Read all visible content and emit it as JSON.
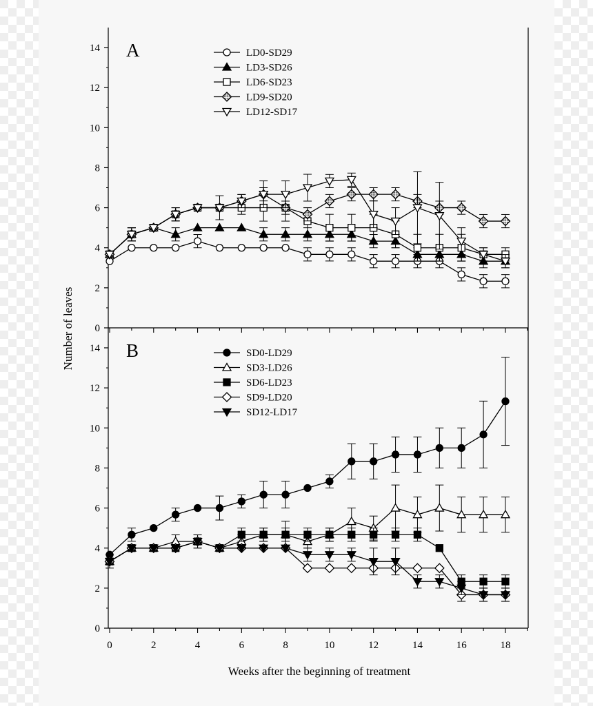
{
  "figure": {
    "ylabel": "Number of leaves",
    "xlabel": "Weeks after the beginning of treatment"
  },
  "chart_data": [
    {
      "type": "line",
      "panel_label": "A",
      "xlabel": "Weeks after the beginning of treatment",
      "ylabel": "Number of leaves",
      "xlim": [
        0,
        18
      ],
      "ylim": [
        0,
        14
      ],
      "x_ticks": [
        "0",
        "2",
        "4",
        "6",
        "8",
        "10",
        "12",
        "14",
        "16",
        "18"
      ],
      "y_ticks": [
        "0",
        "2",
        "4",
        "6",
        "8",
        "10",
        "12",
        "14"
      ],
      "legend_position": "top-center",
      "series": [
        {
          "name": "LD0-SD29",
          "marker": "circle-open",
          "x": [
            0,
            1,
            2,
            3,
            4,
            5,
            6,
            7,
            8,
            9,
            10,
            11,
            12,
            13,
            14,
            15,
            16,
            17,
            18
          ],
          "y": [
            3.33,
            4.0,
            4.0,
            4.0,
            4.33,
            4.0,
            4.0,
            4.0,
            4.0,
            3.67,
            3.67,
            3.67,
            3.33,
            3.33,
            3.33,
            3.33,
            2.67,
            2.33,
            2.33
          ],
          "err": [
            0,
            0,
            0,
            0,
            0.33,
            0,
            0,
            0,
            0,
            0.33,
            0.33,
            0.33,
            0.33,
            0.33,
            0.33,
            0.33,
            0.33,
            0.33,
            0.33
          ]
        },
        {
          "name": "LD3-SD26",
          "marker": "triangle-up-filled",
          "x": [
            0,
            1,
            2,
            3,
            4,
            5,
            6,
            7,
            8,
            9,
            10,
            11,
            12,
            13,
            14,
            15,
            16,
            17,
            18
          ],
          "y": [
            3.67,
            4.67,
            5.0,
            4.67,
            5.0,
            5.0,
            5.0,
            4.67,
            4.67,
            4.67,
            4.67,
            4.67,
            4.33,
            4.33,
            3.67,
            3.67,
            3.67,
            3.33,
            3.33
          ],
          "err": [
            0,
            0.33,
            0,
            0.33,
            0,
            0,
            0,
            0.33,
            0.33,
            0.33,
            0.33,
            0.33,
            0.33,
            0.33,
            0.33,
            0.33,
            0.33,
            0.33,
            0.33
          ]
        },
        {
          "name": "LD6-SD23",
          "marker": "square-open",
          "x": [
            0,
            1,
            2,
            3,
            4,
            5,
            6,
            7,
            8,
            9,
            10,
            11,
            12,
            13,
            14,
            15,
            16,
            17,
            18
          ],
          "y": [
            3.67,
            4.67,
            5.0,
            5.67,
            6.0,
            6.0,
            6.0,
            6.0,
            6.0,
            5.33,
            5.0,
            5.0,
            5.0,
            4.67,
            4.0,
            4.0,
            4.0,
            3.67,
            3.67
          ],
          "err": [
            0,
            0.33,
            0,
            0.33,
            0,
            0,
            0.33,
            0.67,
            0.67,
            0.67,
            0.67,
            0.67,
            0.67,
            0.67,
            0.67,
            0.67,
            0.67,
            0.33,
            0.33
          ]
        },
        {
          "name": "LD9-SD20",
          "marker": "diamond-halftone",
          "x": [
            0,
            1,
            2,
            3,
            4,
            5,
            6,
            7,
            8,
            9,
            10,
            11,
            12,
            13,
            14,
            15,
            16,
            17,
            18
          ],
          "y": [
            3.67,
            4.67,
            5.0,
            5.67,
            6.0,
            6.0,
            6.33,
            6.67,
            6.0,
            5.67,
            6.33,
            6.67,
            6.67,
            6.67,
            6.33,
            6.0,
            6.0,
            5.33,
            5.33
          ],
          "err": [
            0,
            0.33,
            0,
            0.33,
            0,
            0,
            0.33,
            0.33,
            0.33,
            0.33,
            0.33,
            0.33,
            0.33,
            0.33,
            0.33,
            0.33,
            0.33,
            0.33,
            0.33
          ]
        },
        {
          "name": "LD12-SD17",
          "marker": "triangle-down-open",
          "x": [
            0,
            1,
            2,
            3,
            4,
            5,
            6,
            7,
            8,
            9,
            10,
            11,
            12,
            13,
            14,
            15,
            16,
            17,
            18
          ],
          "y": [
            3.67,
            4.67,
            5.0,
            5.67,
            6.0,
            6.0,
            6.33,
            6.67,
            6.67,
            7.0,
            7.33,
            7.4,
            5.67,
            5.33,
            6.0,
            5.6,
            4.33,
            3.67,
            3.33
          ],
          "err": [
            0,
            0.33,
            0,
            0.33,
            0,
            0.6,
            0.33,
            0.67,
            0.67,
            0.67,
            0.33,
            0.33,
            0.67,
            0.67,
            1.8,
            1.67,
            0.67,
            0.33,
            0.33
          ]
        }
      ]
    },
    {
      "type": "line",
      "panel_label": "B",
      "xlabel": "Weeks after the beginning of treatment",
      "ylabel": "Number of leaves",
      "xlim": [
        0,
        18
      ],
      "ylim": [
        0,
        14
      ],
      "x_ticks": [
        "0",
        "2",
        "4",
        "6",
        "8",
        "10",
        "12",
        "14",
        "16",
        "18"
      ],
      "y_ticks": [
        "0",
        "2",
        "4",
        "6",
        "8",
        "10",
        "12",
        "14"
      ],
      "legend_position": "top-center",
      "series": [
        {
          "name": "SD0-LD29",
          "marker": "circle-filled",
          "x": [
            0,
            1,
            2,
            3,
            4,
            5,
            6,
            7,
            8,
            9,
            10,
            11,
            12,
            13,
            14,
            15,
            16,
            17,
            18
          ],
          "y": [
            3.67,
            4.67,
            5.0,
            5.67,
            6.0,
            6.0,
            6.33,
            6.67,
            6.67,
            7.0,
            7.33,
            8.33,
            8.33,
            8.67,
            8.67,
            9.0,
            9.0,
            9.67,
            11.33
          ],
          "err": [
            0,
            0.33,
            0,
            0.33,
            0,
            0.6,
            0.33,
            0.67,
            0.67,
            0,
            0.33,
            0.88,
            0.88,
            0.88,
            0.88,
            1.0,
            1.0,
            1.67,
            2.2
          ]
        },
        {
          "name": "SD3-LD26",
          "marker": "triangle-up-open",
          "x": [
            0,
            1,
            2,
            3,
            4,
            5,
            6,
            7,
            8,
            9,
            10,
            11,
            12,
            13,
            14,
            15,
            16,
            17,
            18
          ],
          "y": [
            3.33,
            4.0,
            4.0,
            4.33,
            4.33,
            4.0,
            4.33,
            4.67,
            4.67,
            4.33,
            4.67,
            5.33,
            5.0,
            6.0,
            5.67,
            6.0,
            5.67,
            5.67,
            5.67
          ],
          "err": [
            0,
            0,
            0,
            0.33,
            0.33,
            0,
            0.33,
            0.33,
            0.67,
            0.33,
            0.33,
            0.67,
            0.6,
            1.15,
            0.88,
            1.15,
            0.88,
            0.88,
            0.88
          ]
        },
        {
          "name": "SD6-LD23",
          "marker": "square-filled",
          "x": [
            0,
            1,
            2,
            3,
            4,
            5,
            6,
            7,
            8,
            9,
            10,
            11,
            12,
            13,
            14,
            15,
            16,
            17,
            18
          ],
          "y": [
            3.33,
            4.0,
            4.0,
            4.0,
            4.33,
            4.0,
            4.67,
            4.67,
            4.67,
            4.67,
            4.67,
            4.67,
            4.67,
            4.67,
            4.67,
            4.0,
            2.33,
            2.33,
            2.33
          ],
          "err": [
            0.33,
            0,
            0,
            0,
            0.33,
            0,
            0.33,
            0.33,
            0.33,
            0.33,
            0.33,
            0.33,
            0.33,
            0.33,
            0.33,
            0,
            0.33,
            0.33,
            0.33
          ]
        },
        {
          "name": "SD9-LD20",
          "marker": "diamond-open",
          "x": [
            0,
            1,
            2,
            3,
            4,
            5,
            6,
            7,
            8,
            9,
            10,
            11,
            12,
            13,
            14,
            15,
            16,
            17,
            18
          ],
          "y": [
            3.33,
            4.0,
            4.0,
            4.0,
            4.33,
            4.0,
            4.0,
            4.0,
            4.0,
            3.0,
            3.0,
            3.0,
            3.0,
            3.0,
            3.0,
            3.0,
            1.67,
            1.67,
            1.67
          ],
          "err": [
            0,
            0,
            0,
            0,
            0,
            0,
            0,
            0,
            0,
            0,
            0,
            0,
            0,
            0,
            0,
            0,
            0.33,
            0.33,
            0.33
          ]
        },
        {
          "name": "SD12-LD17",
          "marker": "triangle-down-filled",
          "x": [
            0,
            1,
            2,
            3,
            4,
            5,
            6,
            7,
            8,
            9,
            10,
            11,
            12,
            13,
            14,
            15,
            16,
            17,
            18
          ],
          "y": [
            3.33,
            4.0,
            4.0,
            4.0,
            4.33,
            4.0,
            4.0,
            4.0,
            4.0,
            3.67,
            3.67,
            3.67,
            3.33,
            3.33,
            2.33,
            2.33,
            2.0,
            1.67,
            1.67
          ],
          "err": [
            0,
            0,
            0,
            0,
            0,
            0,
            0,
            0,
            0,
            0.33,
            0.33,
            0.33,
            0.67,
            0.67,
            0.33,
            0.33,
            0.33,
            0.33,
            0.33
          ]
        }
      ]
    }
  ]
}
